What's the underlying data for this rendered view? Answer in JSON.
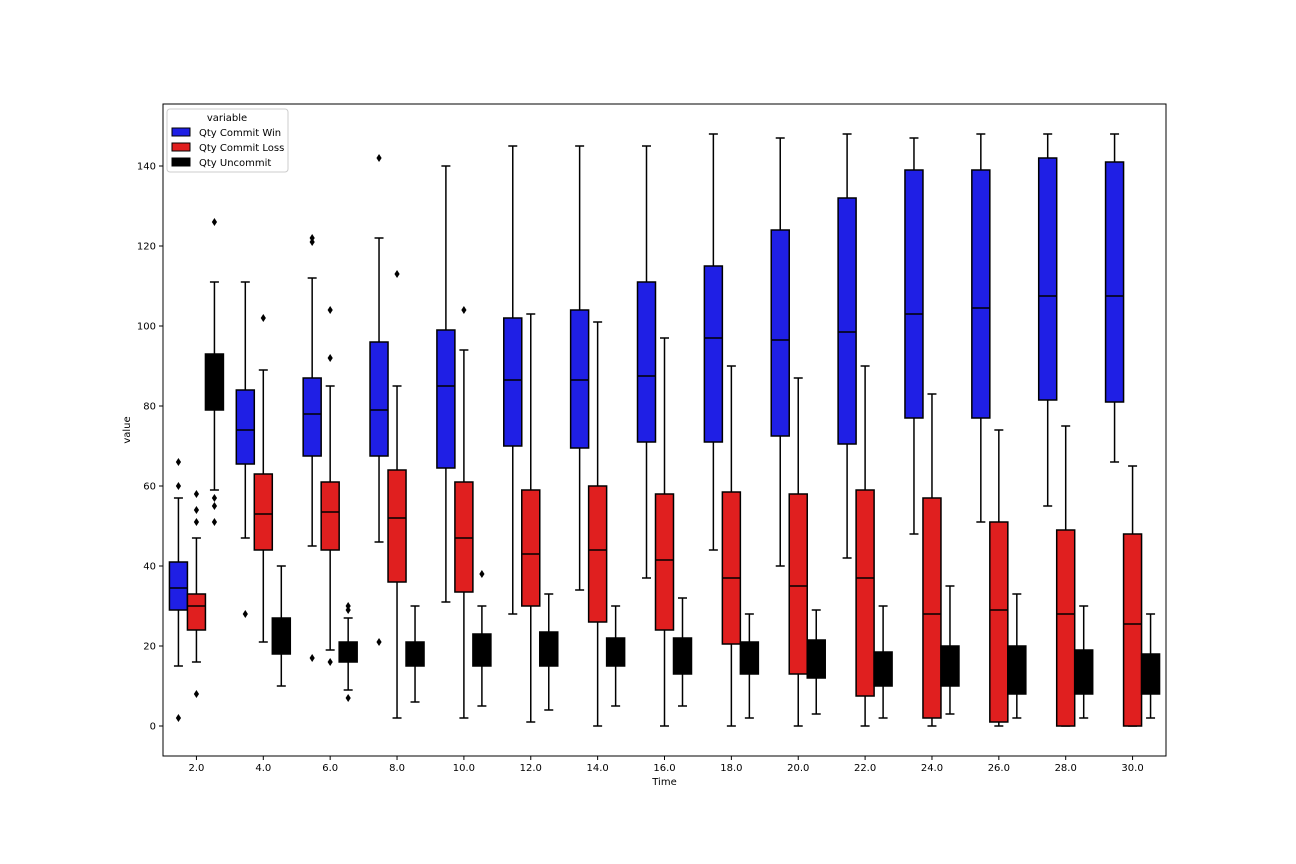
{
  "chart_data": {
    "type": "box",
    "xlabel": "Time",
    "ylabel": "value",
    "ylim": [
      -7.5,
      155.5
    ],
    "yticks": [
      0,
      20,
      40,
      60,
      80,
      100,
      120,
      140
    ],
    "grid": false,
    "legend": {
      "title": "variable",
      "position": "top-left"
    },
    "categories": [
      "2.0",
      "4.0",
      "6.0",
      "8.0",
      "10.0",
      "12.0",
      "14.0",
      "16.0",
      "18.0",
      "20.0",
      "22.0",
      "24.0",
      "26.0",
      "28.0",
      "30.0"
    ],
    "series": [
      {
        "name": "Qty Commit Win",
        "color": "#1f1fe5",
        "boxes": [
          {
            "wl": 15,
            "q1": 29,
            "med": 34.5,
            "q3": 41,
            "wh": 57,
            "out": [
              2,
              60,
              66
            ]
          },
          {
            "wl": 47,
            "q1": 65.5,
            "med": 74,
            "q3": 84,
            "wh": 111,
            "out": [
              28
            ]
          },
          {
            "wl": 45,
            "q1": 67.5,
            "med": 78,
            "q3": 87,
            "wh": 112,
            "out": [
              17,
              121,
              122
            ]
          },
          {
            "wl": 46,
            "q1": 67.5,
            "med": 79,
            "q3": 96,
            "wh": 122,
            "out": [
              21,
              142
            ]
          },
          {
            "wl": 31,
            "q1": 64.5,
            "med": 85,
            "q3": 99,
            "wh": 140,
            "out": []
          },
          {
            "wl": 28,
            "q1": 70,
            "med": 86.5,
            "q3": 102,
            "wh": 145,
            "out": []
          },
          {
            "wl": 34,
            "q1": 69.5,
            "med": 86.5,
            "q3": 104,
            "wh": 145,
            "out": []
          },
          {
            "wl": 37,
            "q1": 71,
            "med": 87.5,
            "q3": 111,
            "wh": 145,
            "out": []
          },
          {
            "wl": 44,
            "q1": 71,
            "med": 97,
            "q3": 115,
            "wh": 148,
            "out": []
          },
          {
            "wl": 40,
            "q1": 72.5,
            "med": 96.5,
            "q3": 124,
            "wh": 147,
            "out": []
          },
          {
            "wl": 42,
            "q1": 70.5,
            "med": 98.5,
            "q3": 132,
            "wh": 148,
            "out": []
          },
          {
            "wl": 48,
            "q1": 77,
            "med": 103,
            "q3": 139,
            "wh": 147,
            "out": []
          },
          {
            "wl": 51,
            "q1": 77,
            "med": 104.5,
            "q3": 139,
            "wh": 148,
            "out": []
          },
          {
            "wl": 55,
            "q1": 81.5,
            "med": 107.5,
            "q3": 142,
            "wh": 148,
            "out": []
          },
          {
            "wl": 66,
            "q1": 81,
            "med": 107.5,
            "q3": 141,
            "wh": 148,
            "out": []
          }
        ]
      },
      {
        "name": "Qty Commit Loss",
        "color": "#e01f1f",
        "boxes": [
          {
            "wl": 16,
            "q1": 24,
            "med": 30,
            "q3": 33,
            "wh": 47,
            "out": [
              8,
              51,
              54,
              58
            ]
          },
          {
            "wl": 21,
            "q1": 44,
            "med": 53,
            "q3": 63,
            "wh": 89,
            "out": [
              102
            ]
          },
          {
            "wl": 19,
            "q1": 44,
            "med": 53.5,
            "q3": 61,
            "wh": 85,
            "out": [
              16,
              92,
              104
            ]
          },
          {
            "wl": 2,
            "q1": 36,
            "med": 52,
            "q3": 64,
            "wh": 85,
            "out": [
              113
            ]
          },
          {
            "wl": 2,
            "q1": 33.5,
            "med": 47,
            "q3": 61,
            "wh": 94,
            "out": [
              104
            ]
          },
          {
            "wl": 1,
            "q1": 30,
            "med": 43,
            "q3": 59,
            "wh": 103,
            "out": []
          },
          {
            "wl": 0,
            "q1": 26,
            "med": 44,
            "q3": 60,
            "wh": 101,
            "out": []
          },
          {
            "wl": 0,
            "q1": 24,
            "med": 41.5,
            "q3": 58,
            "wh": 97,
            "out": []
          },
          {
            "wl": 0,
            "q1": 20.5,
            "med": 37,
            "q3": 58.5,
            "wh": 90,
            "out": []
          },
          {
            "wl": 0,
            "q1": 13,
            "med": 35,
            "q3": 58,
            "wh": 87,
            "out": []
          },
          {
            "wl": 0,
            "q1": 7.5,
            "med": 37,
            "q3": 59,
            "wh": 90,
            "out": []
          },
          {
            "wl": 0,
            "q1": 2,
            "med": 28,
            "q3": 57,
            "wh": 83,
            "out": []
          },
          {
            "wl": 0,
            "q1": 1,
            "med": 29,
            "q3": 51,
            "wh": 74,
            "out": []
          },
          {
            "wl": 0,
            "q1": 0,
            "med": 28,
            "q3": 49,
            "wh": 75,
            "out": []
          },
          {
            "wl": 0,
            "q1": 0,
            "med": 25.5,
            "q3": 48,
            "wh": 65,
            "out": []
          }
        ]
      },
      {
        "name": "Qty Uncommit",
        "color": "#000000",
        "boxes": [
          {
            "wl": 59,
            "q1": 79,
            "med": 86,
            "q3": 93,
            "wh": 111,
            "out": [
              51,
              55,
              57,
              126
            ]
          },
          {
            "wl": 10,
            "q1": 18,
            "med": 23,
            "q3": 27,
            "wh": 40,
            "out": []
          },
          {
            "wl": 9,
            "q1": 16,
            "med": 18,
            "q3": 21,
            "wh": 27,
            "out": [
              7,
              29,
              30
            ]
          },
          {
            "wl": 6,
            "q1": 15,
            "med": 17,
            "q3": 21,
            "wh": 30,
            "out": []
          },
          {
            "wl": 5,
            "q1": 15,
            "med": 18,
            "q3": 23,
            "wh": 30,
            "out": [
              38
            ]
          },
          {
            "wl": 4,
            "q1": 15,
            "med": 19,
            "q3": 23.5,
            "wh": 33,
            "out": []
          },
          {
            "wl": 5,
            "q1": 15,
            "med": 18,
            "q3": 22,
            "wh": 30,
            "out": []
          },
          {
            "wl": 5,
            "q1": 13,
            "med": 17,
            "q3": 22,
            "wh": 32,
            "out": []
          },
          {
            "wl": 2,
            "q1": 13,
            "med": 17,
            "q3": 21,
            "wh": 28,
            "out": []
          },
          {
            "wl": 3,
            "q1": 12,
            "med": 16,
            "q3": 21.5,
            "wh": 29,
            "out": []
          },
          {
            "wl": 2,
            "q1": 10,
            "med": 14,
            "q3": 18.5,
            "wh": 30,
            "out": []
          },
          {
            "wl": 3,
            "q1": 10,
            "med": 15,
            "q3": 20,
            "wh": 35,
            "out": []
          },
          {
            "wl": 2,
            "q1": 8,
            "med": 14,
            "q3": 20,
            "wh": 33,
            "out": []
          },
          {
            "wl": 2,
            "q1": 8,
            "med": 14,
            "q3": 19,
            "wh": 30,
            "out": []
          },
          {
            "wl": 2,
            "q1": 8,
            "med": 13,
            "q3": 18,
            "wh": 28,
            "out": []
          }
        ]
      }
    ]
  }
}
